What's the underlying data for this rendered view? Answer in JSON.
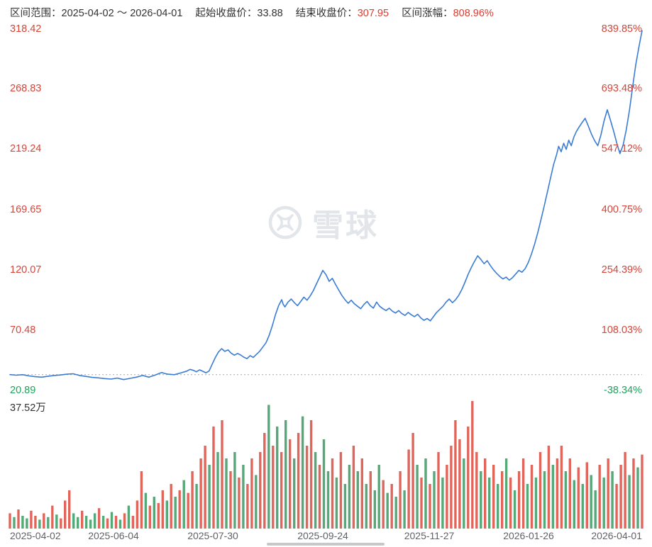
{
  "header": {
    "range_label": "区间范围：",
    "range_value": "2025-04-02 ～ 2026-04-01",
    "start_label": "起始收盘价：",
    "start_value": "33.88",
    "end_label": "结束收盘价：",
    "end_value": "307.95",
    "change_label": "区间涨幅：",
    "change_value": "808.96%"
  },
  "watermark": {
    "text": "雪球"
  },
  "colors": {
    "line": "#3a7cd5",
    "axis_up_text": "#d4453a",
    "axis_down_text": "#1fa35c",
    "header_text": "#333333",
    "header_up": "#e03b2f",
    "volume_up": "#e0665c",
    "volume_down": "#57a878",
    "baseline": "#a8a8a8",
    "date_text": "#606266",
    "watermark": "#e2e6ea"
  },
  "chart_data": {
    "type": "line",
    "title": "",
    "series_name": "收盘价",
    "x_range": [
      "2025-04-02",
      "2026-04-01"
    ],
    "ylim": [
      20.89,
      318.42
    ],
    "right_axis_pct_range": [
      -38.34,
      839.85
    ],
    "baseline": 33.88,
    "start_close": 33.88,
    "end_close": 307.95,
    "period_change_pct": 808.96,
    "left_axis_ticks": [
      "318.42",
      "268.83",
      "219.24",
      "169.65",
      "120.07",
      "70.48",
      "20.89"
    ],
    "right_axis_ticks": [
      "839.85%",
      "693.48%",
      "547.12%",
      "400.75%",
      "254.39%",
      "108.03%",
      "-38.34%"
    ],
    "x_ticks": [
      "2025-04-02",
      "2025-06-04",
      "2025-07-30",
      "2025-09-24",
      "2025-11-27",
      "2026-01-26",
      "2026-04-01"
    ],
    "volume_max_label": "37.52万",
    "legend_position": "none",
    "grid": false,
    "price_points": [
      [
        0,
        33.9
      ],
      [
        0.01,
        33.4
      ],
      [
        0.02,
        33.8
      ],
      [
        0.03,
        32.8
      ],
      [
        0.04,
        32.2
      ],
      [
        0.05,
        31.8
      ],
      [
        0.06,
        32.5
      ],
      [
        0.07,
        33.2
      ],
      [
        0.08,
        33.6
      ],
      [
        0.09,
        34.2
      ],
      [
        0.1,
        34.6
      ],
      [
        0.11,
        33.2
      ],
      [
        0.12,
        32.4
      ],
      [
        0.13,
        31.6
      ],
      [
        0.14,
        31.2
      ],
      [
        0.15,
        30.6
      ],
      [
        0.16,
        30.2
      ],
      [
        0.17,
        31
      ],
      [
        0.175,
        30.4
      ],
      [
        0.18,
        29.8
      ],
      [
        0.19,
        30.8
      ],
      [
        0.2,
        31.8
      ],
      [
        0.21,
        33.2
      ],
      [
        0.215,
        32.4
      ],
      [
        0.22,
        31.8
      ],
      [
        0.23,
        33.5
      ],
      [
        0.24,
        35.6
      ],
      [
        0.245,
        34.8
      ],
      [
        0.25,
        34.2
      ],
      [
        0.26,
        33.8
      ],
      [
        0.27,
        35.2
      ],
      [
        0.28,
        36.8
      ],
      [
        0.285,
        38.2
      ],
      [
        0.29,
        37.4
      ],
      [
        0.295,
        36.2
      ],
      [
        0.3,
        37.8
      ],
      [
        0.305,
        36.6
      ],
      [
        0.31,
        35.4
      ],
      [
        0.315,
        36.8
      ],
      [
        0.32,
        42.5
      ],
      [
        0.325,
        48
      ],
      [
        0.33,
        52.5
      ],
      [
        0.335,
        55.2
      ],
      [
        0.34,
        53
      ],
      [
        0.345,
        54.2
      ],
      [
        0.35,
        51.5
      ],
      [
        0.355,
        49.8
      ],
      [
        0.36,
        51.2
      ],
      [
        0.365,
        50
      ],
      [
        0.37,
        48.2
      ],
      [
        0.375,
        47
      ],
      [
        0.38,
        49.5
      ],
      [
        0.385,
        48
      ],
      [
        0.39,
        50.5
      ],
      [
        0.395,
        53
      ],
      [
        0.4,
        56.5
      ],
      [
        0.405,
        60
      ],
      [
        0.41,
        66
      ],
      [
        0.415,
        74
      ],
      [
        0.42,
        83
      ],
      [
        0.425,
        90.5
      ],
      [
        0.43,
        95.5
      ],
      [
        0.432,
        92
      ],
      [
        0.435,
        89.5
      ],
      [
        0.44,
        93.5
      ],
      [
        0.445,
        96
      ],
      [
        0.45,
        93
      ],
      [
        0.455,
        90.5
      ],
      [
        0.46,
        94
      ],
      [
        0.465,
        97.5
      ],
      [
        0.47,
        95
      ],
      [
        0.475,
        98.5
      ],
      [
        0.48,
        103
      ],
      [
        0.485,
        108.5
      ],
      [
        0.49,
        114
      ],
      [
        0.495,
        119.5
      ],
      [
        0.5,
        116
      ],
      [
        0.505,
        110.5
      ],
      [
        0.51,
        113
      ],
      [
        0.515,
        108
      ],
      [
        0.52,
        103.5
      ],
      [
        0.525,
        99
      ],
      [
        0.53,
        95.5
      ],
      [
        0.535,
        92.5
      ],
      [
        0.54,
        95
      ],
      [
        0.545,
        92
      ],
      [
        0.55,
        90
      ],
      [
        0.555,
        88
      ],
      [
        0.56,
        91.5
      ],
      [
        0.565,
        94
      ],
      [
        0.57,
        90.5
      ],
      [
        0.575,
        88.5
      ],
      [
        0.58,
        93.5
      ],
      [
        0.585,
        90
      ],
      [
        0.59,
        88
      ],
      [
        0.595,
        86.5
      ],
      [
        0.6,
        88.5
      ],
      [
        0.605,
        86
      ],
      [
        0.61,
        84.5
      ],
      [
        0.615,
        86.5
      ],
      [
        0.62,
        84
      ],
      [
        0.625,
        82.5
      ],
      [
        0.63,
        85
      ],
      [
        0.635,
        83
      ],
      [
        0.64,
        81.5
      ],
      [
        0.645,
        83.5
      ],
      [
        0.65,
        80.5
      ],
      [
        0.655,
        78.5
      ],
      [
        0.66,
        80
      ],
      [
        0.665,
        78
      ],
      [
        0.67,
        81.5
      ],
      [
        0.675,
        85
      ],
      [
        0.68,
        87.5
      ],
      [
        0.685,
        90
      ],
      [
        0.69,
        93.5
      ],
      [
        0.695,
        96
      ],
      [
        0.7,
        93
      ],
      [
        0.705,
        95.5
      ],
      [
        0.71,
        99
      ],
      [
        0.715,
        104
      ],
      [
        0.72,
        110
      ],
      [
        0.725,
        116.5
      ],
      [
        0.73,
        122
      ],
      [
        0.735,
        127
      ],
      [
        0.74,
        131.5
      ],
      [
        0.745,
        128.5
      ],
      [
        0.75,
        125
      ],
      [
        0.755,
        127.5
      ],
      [
        0.76,
        123.5
      ],
      [
        0.765,
        120
      ],
      [
        0.77,
        117
      ],
      [
        0.775,
        114.5
      ],
      [
        0.78,
        112.5
      ],
      [
        0.785,
        114
      ],
      [
        0.79,
        111.5
      ],
      [
        0.795,
        113.5
      ],
      [
        0.8,
        116.5
      ],
      [
        0.805,
        119.5
      ],
      [
        0.81,
        118
      ],
      [
        0.815,
        121
      ],
      [
        0.82,
        126
      ],
      [
        0.825,
        133
      ],
      [
        0.83,
        141
      ],
      [
        0.835,
        150.5
      ],
      [
        0.84,
        161
      ],
      [
        0.845,
        172
      ],
      [
        0.85,
        183.5
      ],
      [
        0.855,
        195
      ],
      [
        0.86,
        206.5
      ],
      [
        0.865,
        215
      ],
      [
        0.868,
        221.5
      ],
      [
        0.872,
        217
      ],
      [
        0.876,
        224
      ],
      [
        0.88,
        219
      ],
      [
        0.884,
        226.5
      ],
      [
        0.888,
        222
      ],
      [
        0.892,
        229
      ],
      [
        0.896,
        233.5
      ],
      [
        0.9,
        237
      ],
      [
        0.905,
        241
      ],
      [
        0.91,
        244.5
      ],
      [
        0.915,
        238
      ],
      [
        0.92,
        231.5
      ],
      [
        0.925,
        226
      ],
      [
        0.93,
        222
      ],
      [
        0.935,
        231
      ],
      [
        0.94,
        242.5
      ],
      [
        0.945,
        251.5
      ],
      [
        0.95,
        243
      ],
      [
        0.955,
        234
      ],
      [
        0.96,
        224
      ],
      [
        0.965,
        215.5
      ],
      [
        0.97,
        222.5
      ],
      [
        0.975,
        235
      ],
      [
        0.98,
        251
      ],
      [
        0.985,
        270
      ],
      [
        0.99,
        288.5
      ],
      [
        0.995,
        303
      ],
      [
        1,
        316.5
      ]
    ],
    "volume_bars": [
      [
        0.12,
        "r"
      ],
      [
        0.09,
        "g"
      ],
      [
        0.15,
        "r"
      ],
      [
        0.1,
        "g"
      ],
      [
        0.08,
        "g"
      ],
      [
        0.14,
        "r"
      ],
      [
        0.1,
        "r"
      ],
      [
        0.07,
        "g"
      ],
      [
        0.12,
        "r"
      ],
      [
        0.09,
        "g"
      ],
      [
        0.18,
        "r"
      ],
      [
        0.11,
        "g"
      ],
      [
        0.08,
        "r"
      ],
      [
        0.22,
        "r"
      ],
      [
        0.3,
        "r"
      ],
      [
        0.12,
        "g"
      ],
      [
        0.09,
        "g"
      ],
      [
        0.14,
        "r"
      ],
      [
        0.1,
        "g"
      ],
      [
        0.07,
        "g"
      ],
      [
        0.12,
        "g"
      ],
      [
        0.16,
        "r"
      ],
      [
        0.1,
        "g"
      ],
      [
        0.08,
        "r"
      ],
      [
        0.13,
        "g"
      ],
      [
        0.1,
        "r"
      ],
      [
        0.07,
        "g"
      ],
      [
        0.12,
        "r"
      ],
      [
        0.18,
        "g"
      ],
      [
        0.1,
        "r"
      ],
      [
        0.22,
        "r"
      ],
      [
        0.45,
        "r"
      ],
      [
        0.28,
        "g"
      ],
      [
        0.18,
        "r"
      ],
      [
        0.25,
        "g"
      ],
      [
        0.2,
        "r"
      ],
      [
        0.3,
        "r"
      ],
      [
        0.22,
        "g"
      ],
      [
        0.35,
        "r"
      ],
      [
        0.25,
        "g"
      ],
      [
        0.3,
        "r"
      ],
      [
        0.38,
        "g"
      ],
      [
        0.28,
        "r"
      ],
      [
        0.45,
        "r"
      ],
      [
        0.35,
        "g"
      ],
      [
        0.55,
        "r"
      ],
      [
        0.65,
        "r"
      ],
      [
        0.5,
        "g"
      ],
      [
        0.8,
        "r"
      ],
      [
        0.6,
        "g"
      ],
      [
        0.85,
        "r"
      ],
      [
        0.55,
        "g"
      ],
      [
        0.45,
        "r"
      ],
      [
        0.6,
        "g"
      ],
      [
        0.4,
        "r"
      ],
      [
        0.5,
        "g"
      ],
      [
        0.35,
        "r"
      ],
      [
        0.55,
        "r"
      ],
      [
        0.42,
        "g"
      ],
      [
        0.6,
        "r"
      ],
      [
        0.75,
        "r"
      ],
      [
        0.97,
        "g"
      ],
      [
        0.65,
        "r"
      ],
      [
        0.8,
        "g"
      ],
      [
        0.6,
        "r"
      ],
      [
        0.85,
        "g"
      ],
      [
        0.7,
        "r"
      ],
      [
        0.55,
        "g"
      ],
      [
        0.75,
        "r"
      ],
      [
        0.88,
        "g"
      ],
      [
        0.65,
        "r"
      ],
      [
        0.85,
        "r"
      ],
      [
        0.6,
        "g"
      ],
      [
        0.5,
        "r"
      ],
      [
        0.7,
        "g"
      ],
      [
        0.45,
        "g"
      ],
      [
        0.55,
        "r"
      ],
      [
        0.4,
        "g"
      ],
      [
        0.6,
        "r"
      ],
      [
        0.35,
        "g"
      ],
      [
        0.5,
        "g"
      ],
      [
        0.65,
        "r"
      ],
      [
        0.45,
        "g"
      ],
      [
        0.55,
        "r"
      ],
      [
        0.35,
        "g"
      ],
      [
        0.45,
        "r"
      ],
      [
        0.3,
        "g"
      ],
      [
        0.5,
        "g"
      ],
      [
        0.38,
        "r"
      ],
      [
        0.28,
        "g"
      ],
      [
        0.35,
        "r"
      ],
      [
        0.25,
        "g"
      ],
      [
        0.45,
        "r"
      ],
      [
        0.3,
        "g"
      ],
      [
        0.62,
        "r"
      ],
      [
        0.75,
        "r"
      ],
      [
        0.5,
        "g"
      ],
      [
        0.4,
        "r"
      ],
      [
        0.55,
        "g"
      ],
      [
        0.35,
        "r"
      ],
      [
        0.45,
        "g"
      ],
      [
        0.6,
        "r"
      ],
      [
        0.4,
        "g"
      ],
      [
        0.5,
        "r"
      ],
      [
        0.65,
        "r"
      ],
      [
        0.85,
        "r"
      ],
      [
        0.7,
        "r"
      ],
      [
        0.55,
        "g"
      ],
      [
        0.8,
        "r"
      ],
      [
        1.0,
        "r"
      ],
      [
        0.6,
        "r"
      ],
      [
        0.45,
        "g"
      ],
      [
        0.55,
        "r"
      ],
      [
        0.4,
        "g"
      ],
      [
        0.5,
        "r"
      ],
      [
        0.35,
        "g"
      ],
      [
        0.45,
        "r"
      ],
      [
        0.55,
        "g"
      ],
      [
        0.4,
        "r"
      ],
      [
        0.3,
        "g"
      ],
      [
        0.45,
        "r"
      ],
      [
        0.55,
        "r"
      ],
      [
        0.35,
        "g"
      ],
      [
        0.5,
        "r"
      ],
      [
        0.4,
        "g"
      ],
      [
        0.6,
        "r"
      ],
      [
        0.45,
        "g"
      ],
      [
        0.65,
        "r"
      ],
      [
        0.5,
        "g"
      ],
      [
        0.55,
        "r"
      ],
      [
        0.65,
        "r"
      ],
      [
        0.45,
        "g"
      ],
      [
        0.55,
        "r"
      ],
      [
        0.38,
        "g"
      ],
      [
        0.48,
        "r"
      ],
      [
        0.35,
        "g"
      ],
      [
        0.52,
        "r"
      ],
      [
        0.42,
        "g"
      ],
      [
        0.3,
        "g"
      ],
      [
        0.5,
        "r"
      ],
      [
        0.4,
        "g"
      ],
      [
        0.55,
        "r"
      ],
      [
        0.45,
        "g"
      ],
      [
        0.35,
        "r"
      ],
      [
        0.5,
        "r"
      ],
      [
        0.6,
        "r"
      ],
      [
        0.42,
        "g"
      ],
      [
        0.55,
        "r"
      ],
      [
        0.48,
        "g"
      ],
      [
        0.58,
        "r"
      ]
    ]
  }
}
